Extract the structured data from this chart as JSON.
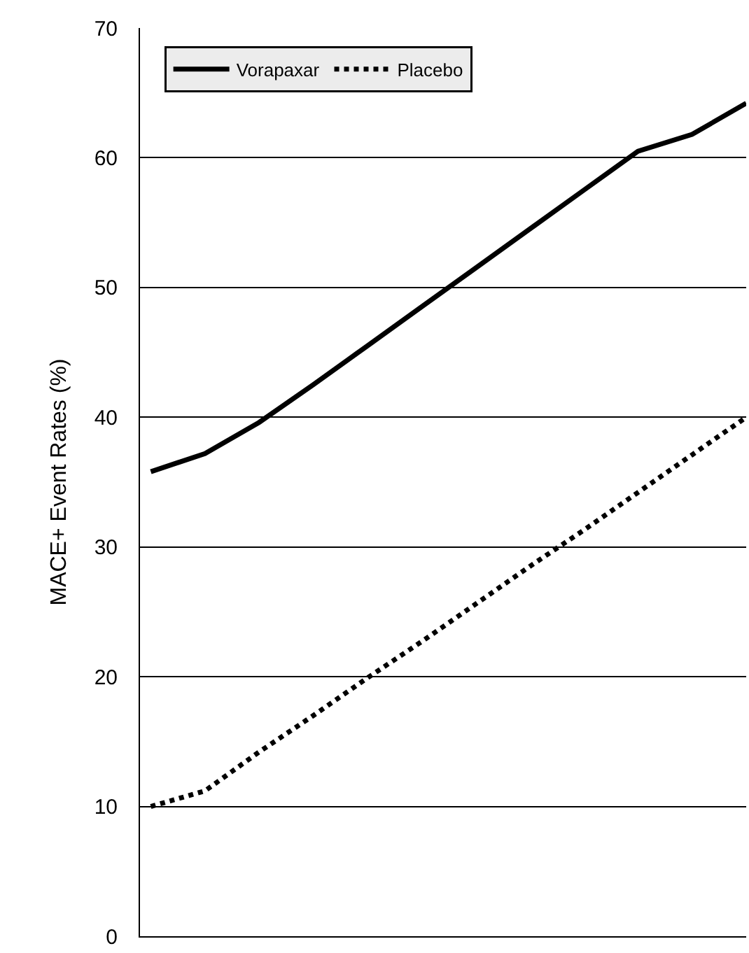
{
  "chart_data": {
    "type": "line",
    "ylabel": "MACE+ Event Rates (%)",
    "categories": [
      null,
      null,
      null,
      null,
      null,
      null,
      null,
      null,
      null,
      null,
      null,
      null
    ],
    "series": [
      {
        "name": "Vorapaxar",
        "color": "#000000",
        "line_style": "solid",
        "values": [
          35.8,
          37.2,
          39.6,
          42.5,
          45.5,
          48.5,
          51.5,
          54.5,
          57.5,
          60.5,
          61.8,
          64.2
        ]
      },
      {
        "name": "Placebo",
        "color": "#000000",
        "line_style": "dotted",
        "values": [
          10.0,
          11.2,
          14.2,
          17.0,
          19.9,
          22.7,
          25.6,
          28.5,
          31.3,
          34.2,
          37.1,
          40.0
        ]
      }
    ],
    "ylim": [
      0,
      70
    ],
    "yticks": [
      0,
      10,
      20,
      30,
      40,
      50,
      60,
      70
    ],
    "grid": "y",
    "legend": "top left",
    "marker": "none",
    "tick_labels": "y"
  }
}
